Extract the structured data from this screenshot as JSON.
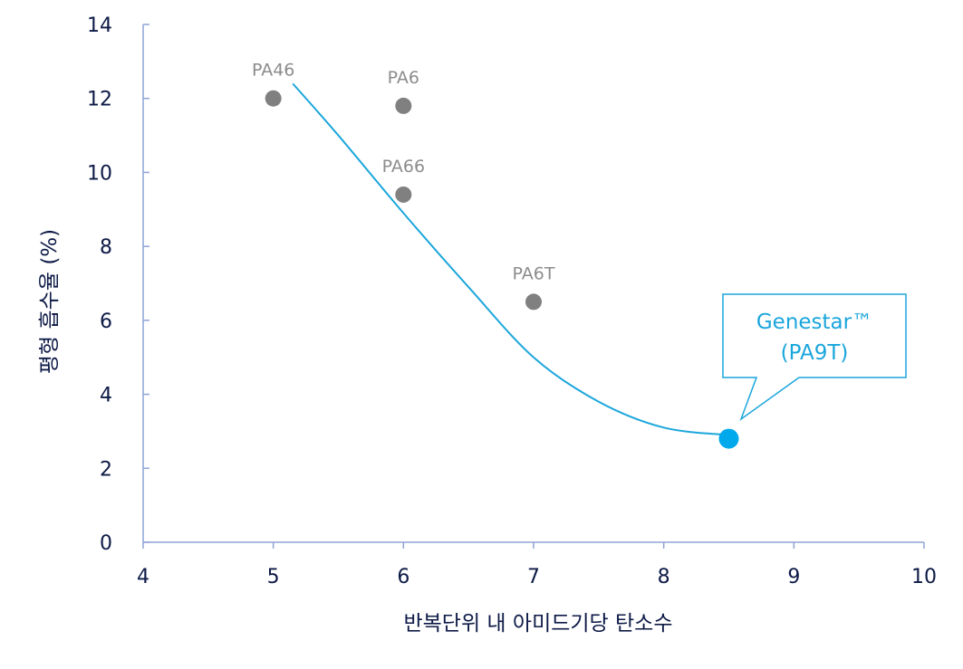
{
  "chart_data": {
    "type": "scatter",
    "xlabel": "반복단위 내 아미드기당 탄소수",
    "ylabel": "평형 흡수율 (%)",
    "xlim": [
      4,
      10
    ],
    "ylim": [
      0,
      14
    ],
    "x_ticks": [
      "4",
      "5",
      "6",
      "7",
      "8",
      "9",
      "10"
    ],
    "y_ticks": [
      "0",
      "2",
      "4",
      "6",
      "8",
      "10",
      "12",
      "14"
    ],
    "grid": false,
    "points": [
      {
        "label": "PA46",
        "x": 5,
        "y": 12.0,
        "color": "#808080"
      },
      {
        "label": "PA6",
        "x": 6,
        "y": 11.8,
        "color": "#808080"
      },
      {
        "label": "PA66",
        "x": 6,
        "y": 9.4,
        "color": "#808080"
      },
      {
        "label": "PA6T",
        "x": 7,
        "y": 6.5,
        "color": "#808080"
      },
      {
        "label": "",
        "x": 8.5,
        "y": 2.8,
        "color": "#00a8ec"
      }
    ],
    "trend_curve": {
      "color": "#1ba6dc",
      "x": [
        5.15,
        5.5,
        6.0,
        6.5,
        7.0,
        7.5,
        8.0,
        8.5
      ],
      "y": [
        12.4,
        11.0,
        8.9,
        6.9,
        5.0,
        3.8,
        3.1,
        2.9
      ]
    },
    "callout": {
      "lines": [
        "Genestar™",
        "(PA9T)"
      ],
      "color": "#1ba6dc"
    }
  }
}
